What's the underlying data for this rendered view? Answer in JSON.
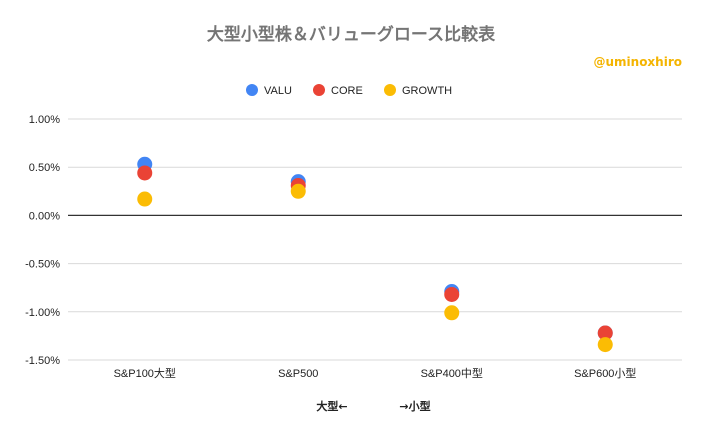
{
  "chart_data": {
    "type": "scatter",
    "title": "大型小型株＆バリューグロース比較表",
    "credit": "@uminoxhiro",
    "categories": [
      "S&P100大型",
      "S&P500",
      "S&P400中型",
      "S&P600小型"
    ],
    "series": [
      {
        "name": "VALU",
        "color": "#4285f4",
        "values": [
          0.53,
          0.35,
          -0.79,
          -1.22
        ]
      },
      {
        "name": "CORE",
        "color": "#ea4335",
        "values": [
          0.44,
          0.31,
          -0.82,
          -1.22
        ]
      },
      {
        "name": "GROWTH",
        "color": "#fbbc04",
        "values": [
          0.17,
          0.25,
          -1.01,
          -1.34
        ]
      }
    ],
    "yticks": [
      "1.00%",
      "0.50%",
      "0.00%",
      "-0.50%",
      "-1.00%",
      "-1.50%"
    ],
    "ytick_values": [
      1.0,
      0.5,
      0.0,
      -0.5,
      -1.0,
      -1.5
    ],
    "ylim": [
      -1.5,
      1.0
    ],
    "xlabel_left": "大型←",
    "xlabel_right": "→小型",
    "grid": true,
    "legend_position": "top-center"
  }
}
